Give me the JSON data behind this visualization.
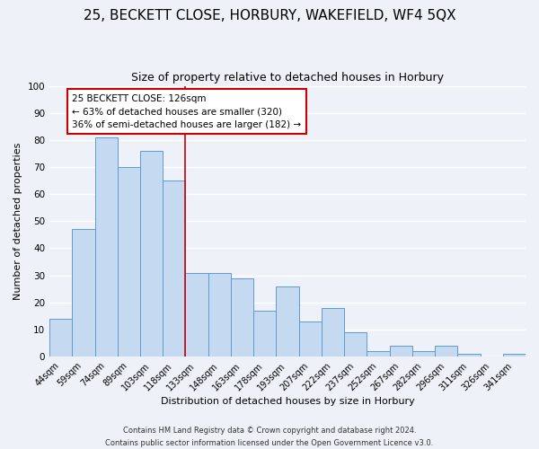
{
  "title": "25, BECKETT CLOSE, HORBURY, WAKEFIELD, WF4 5QX",
  "subtitle": "Size of property relative to detached houses in Horbury",
  "xlabel": "Distribution of detached houses by size in Horbury",
  "ylabel": "Number of detached properties",
  "categories": [
    "44sqm",
    "59sqm",
    "74sqm",
    "89sqm",
    "103sqm",
    "118sqm",
    "133sqm",
    "148sqm",
    "163sqm",
    "178sqm",
    "193sqm",
    "207sqm",
    "222sqm",
    "237sqm",
    "252sqm",
    "267sqm",
    "282sqm",
    "296sqm",
    "311sqm",
    "326sqm",
    "341sqm"
  ],
  "values": [
    14,
    47,
    81,
    70,
    76,
    65,
    31,
    31,
    29,
    17,
    26,
    13,
    18,
    9,
    2,
    4,
    2,
    4,
    1,
    0,
    1
  ],
  "bar_color": "#c5d9f0",
  "bar_edge_color": "#5b9bd5",
  "vline_x": 5.5,
  "vline_color": "#cc0000",
  "ylim": [
    0,
    100
  ],
  "yticks": [
    0,
    10,
    20,
    30,
    40,
    50,
    60,
    70,
    80,
    90,
    100
  ],
  "annotation_title": "25 BECKETT CLOSE: 126sqm",
  "annotation_line1": "← 63% of detached houses are smaller (320)",
  "annotation_line2": "36% of semi-detached houses are larger (182) →",
  "annotation_box_color": "#ffffff",
  "annotation_box_edge_color": "#cc0000",
  "footer_line1": "Contains HM Land Registry data © Crown copyright and database right 2024.",
  "footer_line2": "Contains public sector information licensed under the Open Government Licence v3.0.",
  "background_color": "#eef2f8",
  "grid_color": "#ffffff",
  "title_fontsize": 11,
  "subtitle_fontsize": 9,
  "tick_label_fontsize": 7,
  "ylabel_fontsize": 8,
  "xlabel_fontsize": 8,
  "annotation_fontsize": 7.5,
  "footer_fontsize": 6
}
